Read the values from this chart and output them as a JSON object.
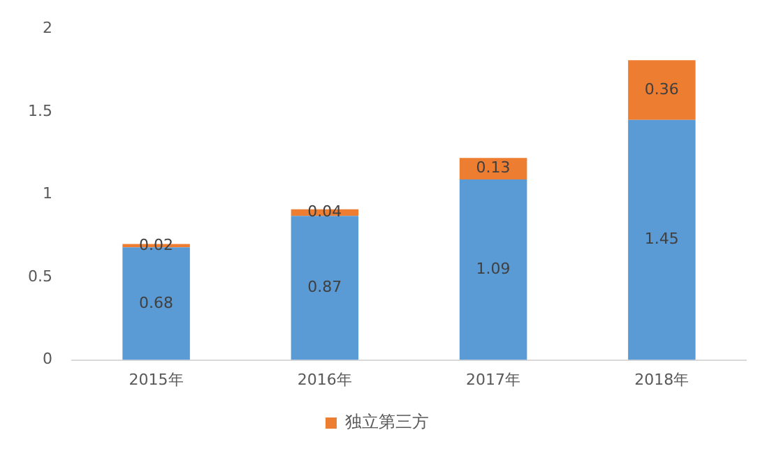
{
  "chart_data": {
    "type": "bar",
    "stacked": true,
    "categories": [
      "2015年",
      "2016年",
      "2017年",
      "2018年"
    ],
    "series": [
      {
        "color": "#5b9bd5",
        "values": [
          0.68,
          0.87,
          1.09,
          1.45
        ]
      },
      {
        "name": "独立第三方",
        "color": "#ed7d31",
        "values": [
          0.02,
          0.04,
          0.13,
          0.36
        ]
      }
    ],
    "ylim": [
      0,
      2
    ],
    "yticks": [
      0,
      0.5,
      1,
      1.5,
      2
    ],
    "grid": false,
    "legend": "bottom",
    "data_labels": true
  }
}
